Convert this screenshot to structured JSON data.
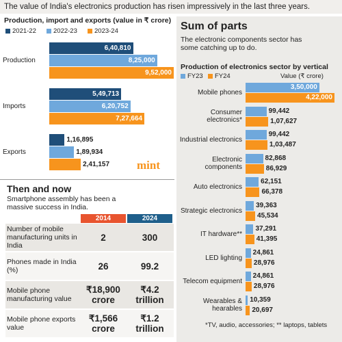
{
  "header": {
    "title": "The value of India's electronics production has risen impressively in the last three years."
  },
  "chart_data": [
    {
      "type": "hbar",
      "title": "Production, import and exports (value in ₹ crore)",
      "categories": [
        "Production",
        "Imports",
        "Exports"
      ],
      "series": [
        {
          "name": "2021-22",
          "color": "#1f4e79",
          "values": [
            640810,
            549713,
            116895
          ],
          "value_labels": [
            "6,40,810",
            "5,49,713",
            "1,16,895"
          ]
        },
        {
          "name": "2022-23",
          "color": "#6fa8dc",
          "values": [
            825000,
            620752,
            189934
          ],
          "value_labels": [
            "8,25,000",
            "6,20,752",
            "1,89,934"
          ]
        },
        {
          "name": "2023-24",
          "color": "#f7941d",
          "values": [
            952000,
            727664,
            241157
          ],
          "value_labels": [
            "9,52,000",
            "7,27,664",
            "2,41,157"
          ]
        }
      ]
    },
    {
      "type": "hbar",
      "title": "Production of electronics sector by vertical",
      "unit_label": "Value (₹ crore)",
      "categories": [
        "Mobile phones",
        "Consumer electronics*",
        "Industrial electronics",
        "Electronic components",
        "Auto electronics",
        "Strategic electronics",
        "IT hardware**",
        "LED lighting",
        "Telecom equipment",
        "Wearables & hearables"
      ],
      "series": [
        {
          "name": "FY23",
          "color": "#6fa8dc",
          "values": [
            350000,
            99442,
            99442,
            82868,
            62151,
            39363,
            37291,
            24861,
            24861,
            10359
          ],
          "value_labels": [
            "3,50,000",
            "99,442",
            "99,442",
            "82,868",
            "62,151",
            "39,363",
            "37,291",
            "24,861",
            "24,861",
            "10,359"
          ]
        },
        {
          "name": "FY24",
          "color": "#f7941d",
          "values": [
            422000,
            107627,
            103487,
            86929,
            66378,
            45534,
            41395,
            28976,
            28976,
            20697
          ],
          "value_labels": [
            "4,22,000",
            "1,07,627",
            "1,03,487",
            "86,929",
            "66,378",
            "45,534",
            "41,395",
            "28,976",
            "28,976",
            "20,697"
          ]
        }
      ]
    }
  ],
  "logo": "mint",
  "then_and_now": {
    "title": "Then and now",
    "subtitle": "Smartphone assembly has been a massive success in India.",
    "table": {
      "header": [
        "2014",
        "2024"
      ],
      "rows": [
        [
          "Number of mobile manufacturing units in India",
          "2",
          "300"
        ],
        [
          "Phones made in India (%)",
          "26",
          "99.2"
        ],
        [
          "Mobile phone manufacturing value",
          "₹18,900 crore",
          "₹4.2 trillion"
        ],
        [
          "Mobile phone exports value",
          "₹1,566 crore",
          "₹1.2 trillion"
        ]
      ]
    }
  },
  "sum_of_parts": {
    "title": "Sum of parts",
    "subtitle": "The electronic components sector has some catching up to do.",
    "footnote": "*TV, audio, accessories; ** laptops, tablets"
  }
}
